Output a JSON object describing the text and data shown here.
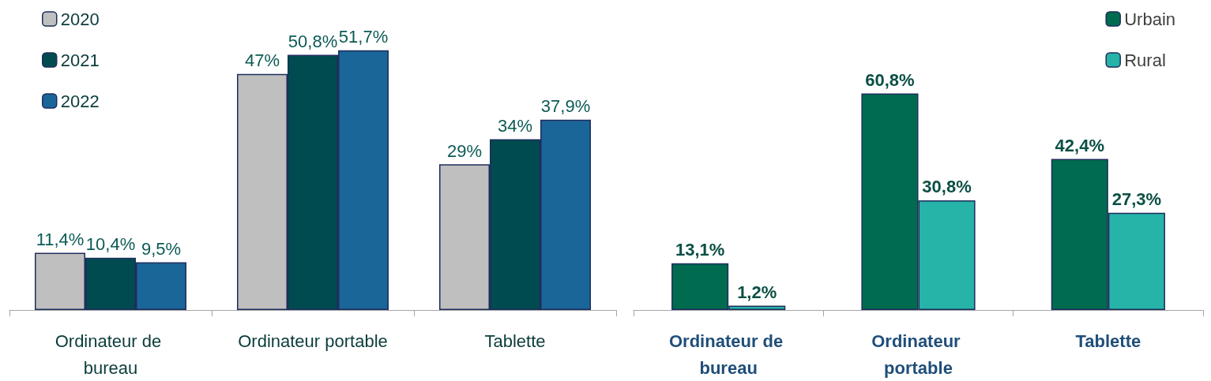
{
  "chart_data": [
    {
      "type": "bar",
      "categories": [
        "Ordinateur de bureau",
        "Ordinateur portable",
        "Tablette"
      ],
      "legend": "top left",
      "series": [
        {
          "name": "2020",
          "color": "#bfbfbf",
          "values": [
            11.4,
            47,
            29
          ],
          "value_labels": [
            "11,4%",
            "47%",
            "29%"
          ]
        },
        {
          "name": "2021",
          "color": "#004b50",
          "values": [
            10.4,
            50.8,
            34
          ],
          "value_labels": [
            "10,4%",
            "50,8%",
            "34%"
          ]
        },
        {
          "name": "2022",
          "color": "#1a6699",
          "values": [
            9.5,
            51.7,
            37.9
          ],
          "value_labels": [
            "9,5%",
            "51,7%",
            "37,9%"
          ]
        }
      ]
    },
    {
      "type": "bar",
      "categories": [
        "Ordinateur de bureau",
        "Ordinateur portable",
        "Tablette"
      ],
      "legend": "top right",
      "series": [
        {
          "name": "Urbain",
          "color": "#006b4f",
          "values": [
            13.1,
            60.8,
            42.4
          ],
          "value_labels": [
            "13,1%",
            "60,8%",
            "42,4%"
          ]
        },
        {
          "name": "Rural",
          "color": "#26b3a8",
          "values": [
            1.2,
            30.8,
            27.3
          ],
          "value_labels": [
            "1,2%",
            "30,8%",
            "27,3%"
          ]
        }
      ]
    }
  ]
}
